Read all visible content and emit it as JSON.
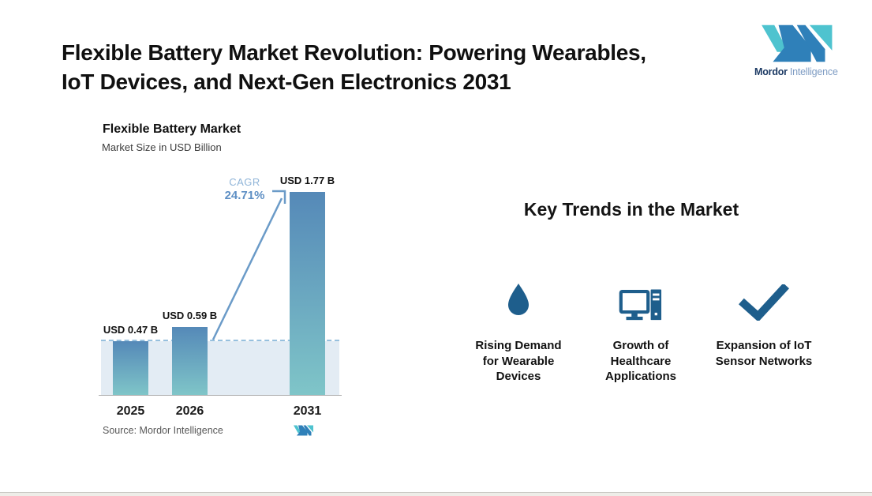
{
  "header": {
    "title_lines": [
      "Flexible Battery Market Revolution: Powering Wearables,",
      "IoT Devices, and Next-Gen Electronics 2031"
    ]
  },
  "brand": {
    "name_bold": "Mordor",
    "name_light": "Intelligence"
  },
  "chart_data": {
    "type": "bar",
    "title": "Flexible Battery Market",
    "subtitle": "Market Size in USD Billion",
    "xlabel": "",
    "ylabel": "Market Size in USD Billion",
    "unit": "USD Billion",
    "categories": [
      "2025",
      "2026",
      "2031"
    ],
    "values": [
      0.47,
      0.59,
      1.77
    ],
    "value_labels": [
      "USD 0.47 B",
      "USD 0.59 B",
      "USD 1.77 B"
    ],
    "ylim": [
      0,
      2
    ],
    "grid": false,
    "cagr": {
      "label": "CAGR",
      "value": "24.71%"
    },
    "reference_line": {
      "style": "dashed",
      "at_value": 0.47,
      "color": "#97C0DE"
    },
    "bar_gradient": [
      "#5589B8",
      "#7FC5C8"
    ],
    "source": "Source: Mordor Intelligence"
  },
  "trends": {
    "heading": "Key Trends in the Market",
    "icon_color": "#1E5E8C",
    "items": [
      {
        "icon": "water-drop-icon",
        "label": "Rising Demand for Wearable Devices"
      },
      {
        "icon": "desktop-computer-icon",
        "label": "Growth of Healthcare Applications"
      },
      {
        "icon": "checkmark-icon",
        "label": "Expansion of IoT Sensor Networks"
      }
    ]
  },
  "colors": {
    "logo_teal": "#4EC3CF",
    "logo_blue": "#2F80B9",
    "accent_dark_blue": "#1E5E8C",
    "arrow_blue": "#6B9BC8",
    "band_fill": "#E3ECF4"
  }
}
